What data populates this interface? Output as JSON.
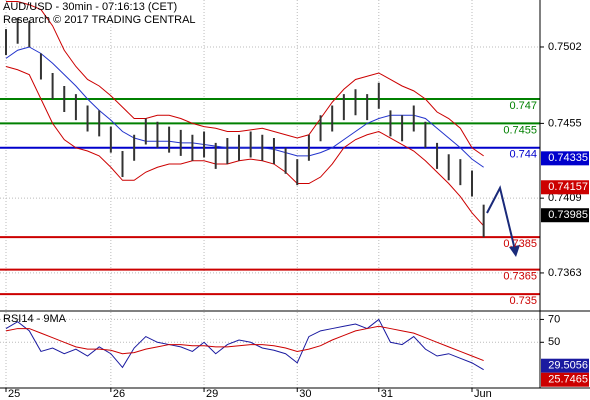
{
  "chart_data": [
    {
      "type": "hilo",
      "title": "AUD/USD - 30min - 07:16:13 (CET)",
      "subtitle": "Research © 2017 TRADING CENTRAL",
      "categories": [
        "25",
        null,
        null,
        null,
        null,
        null,
        null,
        null,
        null,
        "26",
        null,
        null,
        null,
        null,
        null,
        null,
        null,
        "29",
        null,
        null,
        null,
        null,
        null,
        null,
        null,
        "30",
        null,
        null,
        null,
        null,
        null,
        null,
        "31",
        null,
        null,
        null,
        null,
        null,
        null,
        null,
        "Jun",
        null
      ],
      "high": [
        0.7513,
        0.752,
        0.7518,
        0.7498,
        0.7486,
        0.7478,
        0.7473,
        0.7466,
        0.7463,
        0.7453,
        0.7438,
        0.7448,
        0.7458,
        0.7456,
        0.7453,
        0.7451,
        0.7448,
        0.745,
        0.7443,
        0.7446,
        0.7448,
        0.745,
        0.7448,
        0.7446,
        0.744,
        0.7433,
        0.7448,
        0.746,
        0.7466,
        0.7473,
        0.7476,
        0.7473,
        0.748,
        0.7463,
        0.746,
        0.7466,
        0.7456,
        0.7443,
        0.7436,
        0.7433,
        0.7426,
        0.7405
      ],
      "low": [
        0.7497,
        0.7504,
        0.7502,
        0.7482,
        0.747,
        0.7462,
        0.7457,
        0.745,
        0.7447,
        0.7437,
        0.7422,
        0.7432,
        0.7442,
        0.744,
        0.7437,
        0.7435,
        0.7432,
        0.7434,
        0.7427,
        0.743,
        0.7432,
        0.7434,
        0.7432,
        0.743,
        0.7424,
        0.7417,
        0.7432,
        0.7444,
        0.745,
        0.7457,
        0.746,
        0.7457,
        0.7464,
        0.7447,
        0.7444,
        0.745,
        0.744,
        0.7427,
        0.742,
        0.7417,
        0.741,
        0.7385
      ],
      "color": "#333333",
      "upper_band": [
        0.753,
        0.753,
        0.7528,
        0.7525,
        0.7515,
        0.75,
        0.749,
        0.7482,
        0.7478,
        0.7472,
        0.7465,
        0.7458,
        0.7458,
        0.746,
        0.746,
        0.7458,
        0.7455,
        0.7453,
        0.7452,
        0.745,
        0.745,
        0.7451,
        0.7452,
        0.745,
        0.7448,
        0.7446,
        0.7448,
        0.7458,
        0.7468,
        0.7476,
        0.7482,
        0.7484,
        0.7486,
        0.7482,
        0.7478,
        0.7475,
        0.747,
        0.7462,
        0.7458,
        0.7452,
        0.744,
        0.7435
      ],
      "lower_band": [
        0.749,
        0.7488,
        0.7485,
        0.747,
        0.7455,
        0.7445,
        0.744,
        0.7438,
        0.7435,
        0.7428,
        0.742,
        0.742,
        0.7425,
        0.7428,
        0.743,
        0.743,
        0.7432,
        0.7432,
        0.743,
        0.743,
        0.7432,
        0.7433,
        0.7432,
        0.743,
        0.7425,
        0.7418,
        0.7418,
        0.7422,
        0.743,
        0.744,
        0.7445,
        0.7448,
        0.745,
        0.7446,
        0.7442,
        0.7438,
        0.7432,
        0.7425,
        0.7418,
        0.741,
        0.74,
        0.7392
      ],
      "band_color": "#cc0000",
      "moving_average": [
        0.7495,
        0.75,
        0.7502,
        0.7498,
        0.7492,
        0.7485,
        0.7478,
        0.747,
        0.7463,
        0.7457,
        0.745,
        0.7446,
        0.7444,
        0.7444,
        0.7444,
        0.7443,
        0.7443,
        0.7442,
        0.7441,
        0.744,
        0.744,
        0.744,
        0.744,
        0.7439,
        0.7437,
        0.7435,
        0.7435,
        0.7437,
        0.744,
        0.7445,
        0.745,
        0.7455,
        0.7458,
        0.746,
        0.746,
        0.746,
        0.7458,
        0.7452,
        0.7446,
        0.744,
        0.7433,
        0.7428
      ],
      "ma_color": "#2233cc",
      "levels": [
        {
          "value": 0.747,
          "color": "#008000"
        },
        {
          "value": 0.7455,
          "color": "#008000"
        },
        {
          "value": 0.744,
          "color": "#0000cc"
        },
        {
          "value": 0.7385,
          "color": "#cc0000"
        },
        {
          "value": 0.7365,
          "color": "#cc0000"
        },
        {
          "value": 0.735,
          "color": "#cc0000"
        }
      ],
      "readouts": [
        {
          "value": 0.74335,
          "color": "#0000cc"
        },
        {
          "value": 0.74157,
          "color": "#cc0000"
        },
        {
          "value": 0.73985,
          "color": "#000000"
        }
      ],
      "ylim": [
        0.73402,
        0.75309
      ],
      "yticks": [
        0.7502,
        0.7455,
        0.7409,
        0.7363
      ]
    },
    {
      "type": "line",
      "title": "RSI14 - 9MA",
      "series": [
        {
          "color": "#1a1aa0",
          "values": [
            62,
            68,
            60,
            42,
            45,
            40,
            44,
            38,
            46,
            40,
            28,
            45,
            55,
            50,
            48,
            46,
            42,
            50,
            40,
            48,
            52,
            50,
            45,
            43,
            40,
            32,
            55,
            60,
            62,
            64,
            66,
            62,
            70,
            50,
            48,
            55,
            44,
            38,
            40,
            36,
            32,
            26
          ]
        },
        {
          "color": "#cc0000",
          "values": [
            60,
            62,
            62,
            58,
            54,
            50,
            46,
            44,
            44,
            43,
            40,
            41,
            44,
            46,
            48,
            48,
            47,
            47,
            46,
            46,
            47,
            48,
            48,
            47,
            45,
            42,
            44,
            47,
            52,
            56,
            60,
            62,
            64,
            62,
            60,
            58,
            54,
            50,
            46,
            42,
            38,
            34
          ]
        }
      ],
      "readouts": [
        {
          "value": 29.5056,
          "color": "#1a1aa0"
        },
        {
          "value": 25.7465,
          "color": "#cc0000"
        }
      ],
      "ylim": [
        10,
        76.5
      ],
      "yticks": [
        70,
        50
      ]
    }
  ]
}
